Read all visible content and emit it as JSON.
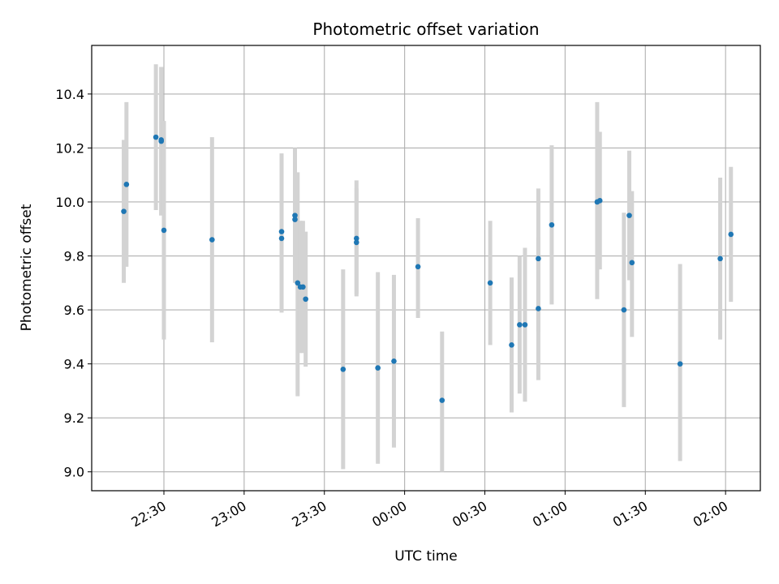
{
  "chart_data": {
    "type": "scatter",
    "title": "Photometric offset variation",
    "xlabel": "UTC time",
    "ylabel": "Photometric offset",
    "x_axis": "time",
    "xlim": [
      "22:03",
      "02:13"
    ],
    "ylim": [
      8.93,
      10.58
    ],
    "grid": true,
    "x_ticks": [
      "22:30",
      "23:00",
      "23:30",
      "00:00",
      "00:30",
      "01:00",
      "01:30",
      "02:00"
    ],
    "y_ticks": [
      9.0,
      9.2,
      9.4,
      9.6,
      9.8,
      10.0,
      10.2,
      10.4
    ],
    "colors": {
      "point": "#1f77b4",
      "errorbar": "#d3d3d3",
      "grid": "#b0b0b0"
    },
    "points": [
      {
        "t": "22:15",
        "y": 9.965,
        "lo": 9.7,
        "hi": 10.23
      },
      {
        "t": "22:16",
        "y": 10.065,
        "lo": 9.76,
        "hi": 10.37
      },
      {
        "t": "22:27",
        "y": 10.24,
        "lo": 9.97,
        "hi": 10.51
      },
      {
        "t": "22:29",
        "y": 10.23,
        "lo": 9.95,
        "hi": 10.5
      },
      {
        "t": "22:29",
        "y": 10.225,
        "lo": 9.95,
        "hi": 10.5
      },
      {
        "t": "22:30",
        "y": 9.895,
        "lo": 9.49,
        "hi": 10.3
      },
      {
        "t": "22:48",
        "y": 9.86,
        "lo": 9.48,
        "hi": 10.24
      },
      {
        "t": "23:14",
        "y": 9.89,
        "lo": 9.59,
        "hi": 10.18
      },
      {
        "t": "23:14",
        "y": 9.865,
        "lo": 9.61,
        "hi": 10.12
      },
      {
        "t": "23:19",
        "y": 9.95,
        "lo": 9.7,
        "hi": 10.2
      },
      {
        "t": "23:19",
        "y": 9.935,
        "lo": 9.72,
        "hi": 10.15
      },
      {
        "t": "23:20",
        "y": 9.7,
        "lo": 9.28,
        "hi": 10.11
      },
      {
        "t": "23:21",
        "y": 9.685,
        "lo": 9.44,
        "hi": 9.93
      },
      {
        "t": "23:22",
        "y": 9.685,
        "lo": 9.44,
        "hi": 9.93
      },
      {
        "t": "23:23",
        "y": 9.64,
        "lo": 9.39,
        "hi": 9.89
      },
      {
        "t": "23:37",
        "y": 9.38,
        "lo": 9.01,
        "hi": 9.75
      },
      {
        "t": "23:42",
        "y": 9.85,
        "lo": 9.65,
        "hi": 10.05
      },
      {
        "t": "23:42",
        "y": 9.865,
        "lo": 9.66,
        "hi": 10.08
      },
      {
        "t": "23:50",
        "y": 9.385,
        "lo": 9.03,
        "hi": 9.74
      },
      {
        "t": "23:56",
        "y": 9.41,
        "lo": 9.09,
        "hi": 9.73
      },
      {
        "t": "00:05",
        "y": 9.76,
        "lo": 9.57,
        "hi": 9.94
      },
      {
        "t": "00:14",
        "y": 9.265,
        "lo": 9.0,
        "hi": 9.52
      },
      {
        "t": "00:32",
        "y": 9.7,
        "lo": 9.47,
        "hi": 9.93
      },
      {
        "t": "00:40",
        "y": 9.47,
        "lo": 9.22,
        "hi": 9.72
      },
      {
        "t": "00:43",
        "y": 9.545,
        "lo": 9.29,
        "hi": 9.8
      },
      {
        "t": "00:45",
        "y": 9.545,
        "lo": 9.26,
        "hi": 9.83
      },
      {
        "t": "00:50",
        "y": 9.79,
        "lo": 9.52,
        "hi": 10.05
      },
      {
        "t": "00:50",
        "y": 9.605,
        "lo": 9.34,
        "hi": 9.87
      },
      {
        "t": "00:55",
        "y": 9.915,
        "lo": 9.62,
        "hi": 10.21
      },
      {
        "t": "01:12",
        "y": 10.0,
        "lo": 9.64,
        "hi": 10.37
      },
      {
        "t": "01:13",
        "y": 10.005,
        "lo": 9.75,
        "hi": 10.26
      },
      {
        "t": "01:22",
        "y": 9.6,
        "lo": 9.24,
        "hi": 9.96
      },
      {
        "t": "01:24",
        "y": 9.95,
        "lo": 9.71,
        "hi": 10.19
      },
      {
        "t": "01:25",
        "y": 9.775,
        "lo": 9.5,
        "hi": 10.04
      },
      {
        "t": "01:43",
        "y": 9.4,
        "lo": 9.04,
        "hi": 9.77
      },
      {
        "t": "01:58",
        "y": 9.79,
        "lo": 9.49,
        "hi": 10.09
      },
      {
        "t": "02:02",
        "y": 9.88,
        "lo": 9.63,
        "hi": 10.13
      }
    ]
  }
}
